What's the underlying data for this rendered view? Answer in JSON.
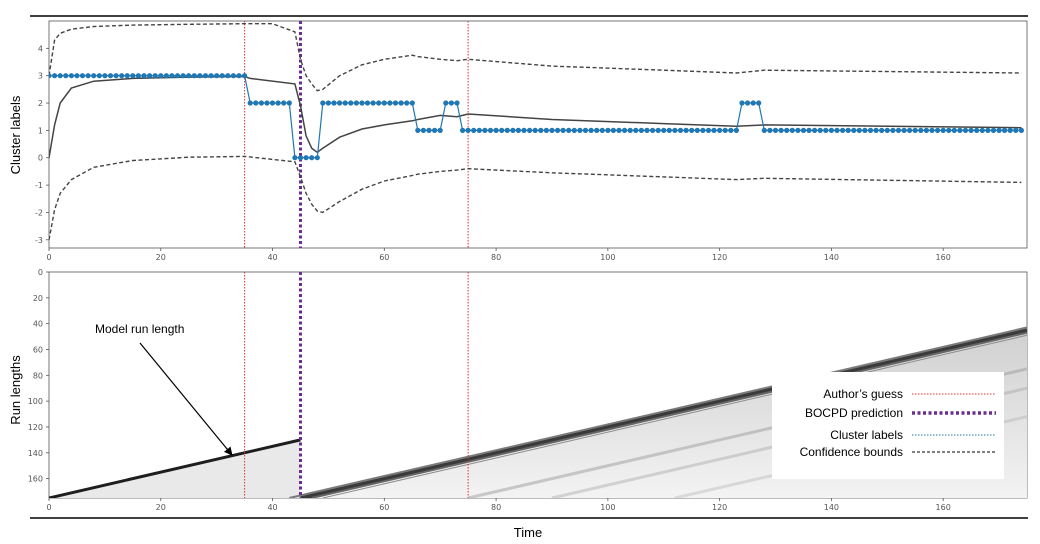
{
  "chart_data": [
    {
      "type": "line",
      "panel": "top",
      "ylabel": "Cluster labels",
      "xlim": [
        0,
        175
      ],
      "ylim": [
        -3.3,
        5.0
      ],
      "xticks": [
        0,
        20,
        40,
        60,
        80,
        100,
        120,
        140,
        160
      ],
      "yticks": [
        -3,
        -2,
        -1,
        0,
        1,
        2,
        3,
        4
      ],
      "cluster_labels": {
        "name": "Cluster labels",
        "color": "#1f77b4",
        "segments": [
          {
            "x0": 0,
            "x1": 35,
            "value": 3
          },
          {
            "x0": 36,
            "x1": 43,
            "value": 2
          },
          {
            "x0": 44,
            "x1": 48,
            "value": 0
          },
          {
            "x0": 49,
            "x1": 65,
            "value": 2
          },
          {
            "x0": 66,
            "x1": 70,
            "value": 1
          },
          {
            "x0": 71,
            "x1": 73,
            "value": 2
          },
          {
            "x0": 74,
            "x1": 123,
            "value": 1
          },
          {
            "x0": 124,
            "x1": 127,
            "value": 2
          },
          {
            "x0": 128,
            "x1": 174,
            "value": 1
          }
        ]
      },
      "mean_line": {
        "x": [
          0,
          1,
          2,
          4,
          8,
          15,
          25,
          35,
          36,
          44,
          45,
          46,
          47,
          48,
          49,
          52,
          56,
          60,
          65,
          66,
          70,
          73,
          75,
          90,
          110,
          123,
          128,
          174
        ],
        "y": [
          0.0,
          1.2,
          2.0,
          2.55,
          2.8,
          2.9,
          2.95,
          2.97,
          2.9,
          2.7,
          1.9,
          0.8,
          0.35,
          0.2,
          0.35,
          0.75,
          1.05,
          1.2,
          1.35,
          1.4,
          1.55,
          1.5,
          1.6,
          1.4,
          1.25,
          1.15,
          1.2,
          1.1
        ]
      },
      "upper_bound": {
        "x": [
          0,
          1,
          2,
          4,
          8,
          15,
          25,
          35,
          40,
          44,
          45,
          46,
          47,
          48,
          49,
          52,
          56,
          60,
          65,
          66,
          70,
          73,
          75,
          90,
          110,
          123,
          128,
          174
        ],
        "y": [
          3.0,
          4.3,
          4.55,
          4.7,
          4.8,
          4.85,
          4.88,
          4.9,
          4.9,
          4.6,
          3.6,
          3.0,
          2.7,
          2.45,
          2.5,
          3.0,
          3.4,
          3.6,
          3.75,
          3.7,
          3.6,
          3.55,
          3.6,
          3.35,
          3.2,
          3.1,
          3.2,
          3.1
        ]
      },
      "lower_bound": {
        "x": [
          0,
          1,
          2,
          4,
          8,
          15,
          25,
          35,
          44,
          45,
          46,
          47,
          48,
          49,
          52,
          56,
          60,
          65,
          66,
          70,
          73,
          75,
          90,
          110,
          123,
          128,
          174
        ],
        "y": [
          -3.0,
          -1.9,
          -1.3,
          -0.8,
          -0.35,
          -0.1,
          0.02,
          0.05,
          -0.15,
          -0.7,
          -1.3,
          -1.7,
          -1.95,
          -2.0,
          -1.6,
          -1.15,
          -0.85,
          -0.65,
          -0.6,
          -0.5,
          -0.45,
          -0.4,
          -0.55,
          -0.7,
          -0.8,
          -0.75,
          -0.9
        ]
      },
      "vlines": [
        {
          "name": "Author's guess",
          "x": 35
        },
        {
          "name": "BOCPD prediction",
          "x": 45
        },
        {
          "name": "Author's guess",
          "x": 75
        }
      ]
    },
    {
      "type": "heatmap",
      "panel": "bottom",
      "xlabel": "Time",
      "ylabel": "Run lengths",
      "xlim": [
        0,
        175
      ],
      "ylim": [
        175,
        0
      ],
      "xticks": [
        0,
        20,
        40,
        60,
        80,
        100,
        120,
        140,
        160
      ],
      "yticks": [
        0,
        20,
        40,
        60,
        80,
        100,
        120,
        140,
        160
      ],
      "annotation": "Model run length",
      "vlines": [
        35,
        45,
        75
      ]
    }
  ],
  "legend": {
    "items": [
      {
        "label": "Author’s guess",
        "color": "#e03030",
        "style": "dotted-thin"
      },
      {
        "label": "BOCPD prediction",
        "color": "#6a2c91",
        "style": "dotted-thick"
      },
      {
        "label": "Cluster labels",
        "color": "#1f77b4",
        "style": "dotted-thin"
      },
      {
        "label": "Confidence bounds",
        "color": "#000000",
        "style": "dashed"
      }
    ]
  },
  "colors": {
    "cluster": "#1f77b4",
    "mean": "#444444",
    "bounds": "#444444",
    "guess": "#e03030",
    "bocpd": "#6a2c91"
  }
}
